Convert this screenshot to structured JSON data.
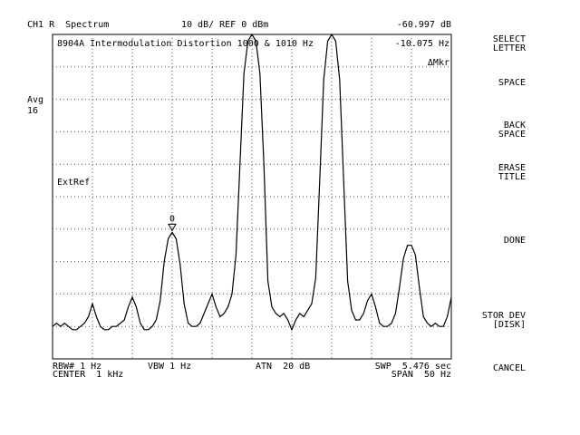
{
  "header": {
    "channel": "CH1 R  Spectrum",
    "scale": "10 dB/ REF 0 dBm",
    "marker_readout": "-60.997 dB"
  },
  "title": "8904A Intermodulation Distortion 1000 & 1010 Hz",
  "marker_delta": "-10.075 Hz",
  "marker_mode": "ΔMkr",
  "left": {
    "avg_label": "Avg",
    "avg_count": "16",
    "ref_mode": "ExtRef"
  },
  "marker_label": "0",
  "footer": {
    "rbw": "RBW# 1 Hz",
    "vbw": "VBW 1 Hz",
    "atn": "ATN  20 dB",
    "swp": "SWP  5.476 sec",
    "center": "CENTER  1 kHz",
    "span": "SPAN  50 Hz"
  },
  "softkeys": [
    [
      "SELECT",
      "LETTER"
    ],
    [
      "SPACE"
    ],
    [
      "BACK",
      "SPACE"
    ],
    [
      "ERASE",
      "TITLE"
    ],
    [
      "DONE"
    ],
    [
      "STOR DEV",
      "[DISK]"
    ],
    [
      "CANCEL"
    ]
  ],
  "chart_data": {
    "type": "line",
    "color": "#000000",
    "xlim": [
      975,
      1025
    ],
    "ylim": [
      -100,
      0
    ],
    "marker_index": 30,
    "x": [
      975,
      975.5,
      976,
      976.5,
      977,
      977.5,
      978,
      978.5,
      979,
      979.5,
      980,
      980.5,
      981,
      981.5,
      982,
      982.5,
      983,
      983.5,
      984,
      984.5,
      985,
      985.5,
      986,
      986.5,
      987,
      987.5,
      988,
      988.5,
      989,
      989.5,
      990,
      990.5,
      991,
      991.5,
      992,
      992.5,
      993,
      993.5,
      994,
      994.5,
      995,
      995.5,
      996,
      996.5,
      997,
      997.5,
      998,
      998.5,
      999,
      999.5,
      1000,
      1000.5,
      1001,
      1001.5,
      1002,
      1002.5,
      1003,
      1003.5,
      1004,
      1004.5,
      1005,
      1005.5,
      1006,
      1006.5,
      1007,
      1007.5,
      1008,
      1008.5,
      1009,
      1009.5,
      1010,
      1010.5,
      1011,
      1011.5,
      1012,
      1012.5,
      1013,
      1013.5,
      1014,
      1014.5,
      1015,
      1015.5,
      1016,
      1016.5,
      1017,
      1017.5,
      1018,
      1018.5,
      1019,
      1019.5,
      1020,
      1020.5,
      1021,
      1021.5,
      1022,
      1022.5,
      1023,
      1023.5,
      1024,
      1024.5,
      1025
    ],
    "values": [
      -90,
      -89,
      -90,
      -89,
      -90,
      -91,
      -91,
      -90,
      -89,
      -87,
      -83,
      -87,
      -90,
      -91,
      -91,
      -90,
      -90,
      -89,
      -88,
      -84,
      -81,
      -84,
      -89,
      -91,
      -91,
      -90,
      -88,
      -82,
      -70,
      -63,
      -61,
      -63,
      -71,
      -83,
      -89,
      -90,
      -90,
      -89,
      -86,
      -83,
      -80,
      -84,
      -87,
      -86,
      -84,
      -80,
      -68,
      -40,
      -12,
      -2,
      0,
      -2,
      -12,
      -40,
      -76,
      -84,
      -86,
      -87,
      -86,
      -88,
      -91,
      -88,
      -86,
      -87,
      -85,
      -83,
      -75,
      -45,
      -14,
      -2,
      0,
      -2,
      -14,
      -45,
      -76,
      -85,
      -88,
      -88,
      -86,
      -82,
      -80,
      -84,
      -89,
      -90,
      -90,
      -89,
      -86,
      -78,
      -69,
      -65,
      -65,
      -68,
      -78,
      -87,
      -89,
      -90,
      -89,
      -90,
      -90,
      -87,
      -81
    ]
  }
}
